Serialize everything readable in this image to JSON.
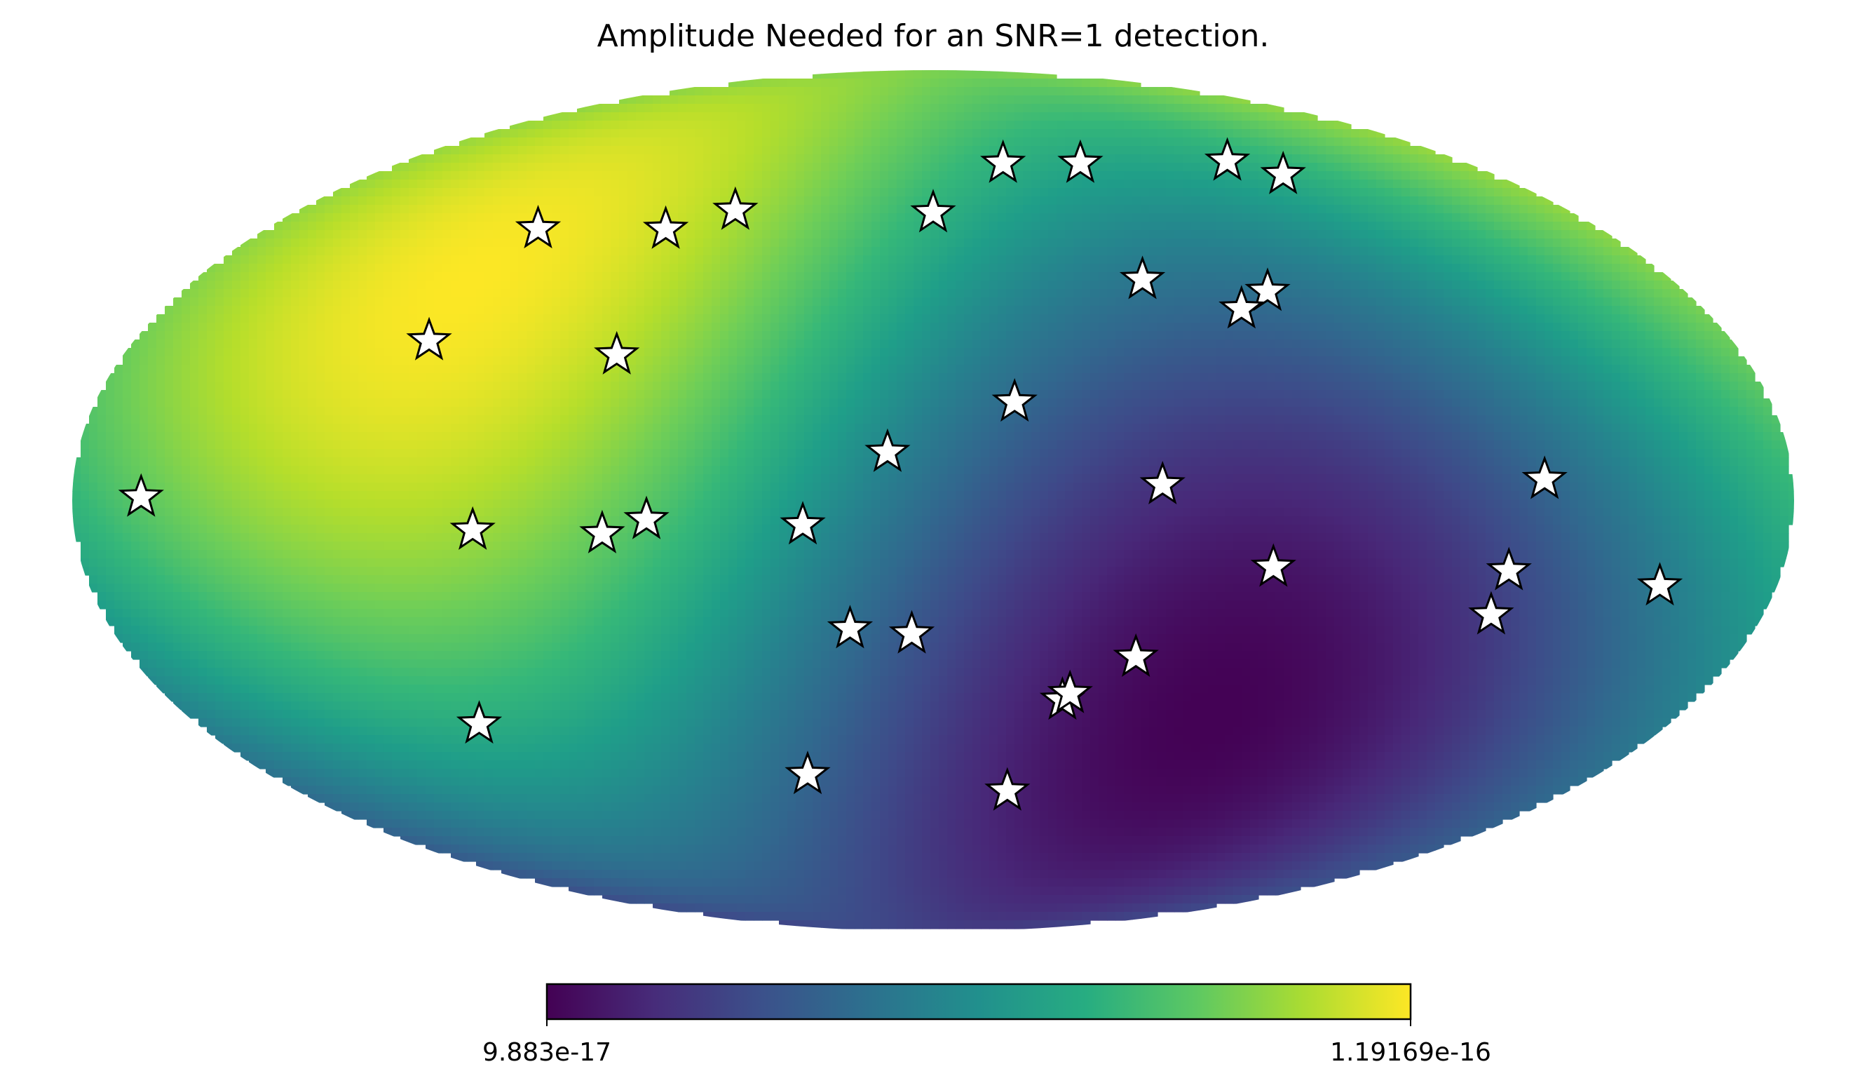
{
  "chart_data": {
    "type": "heatmap",
    "projection": "mollweide",
    "title": "Amplitude Needed for an SNR=1 detection.",
    "colormap": "viridis",
    "colorbar": {
      "min_label": "9.883e-17",
      "max_label": "1.19169e-16",
      "min": 9.883e-17,
      "max": 1.19169e-16,
      "orientation": "horizontal",
      "placement": "bottom"
    },
    "field": {
      "description_of_gradient": "yellow maximum toward upper-left, dark purple minimum toward lower-right",
      "max_lon_deg": 118,
      "max_lat_deg": 40,
      "min_lon_deg": -72,
      "min_lat_deg": -35
    },
    "marker": {
      "symbol": "star",
      "fill": "#ffffff",
      "stroke": "#000000"
    },
    "sources": [
      {
        "lon": 165.6,
        "lat": 0.6
      },
      {
        "lon": 113.5,
        "lat": 27.5
      },
      {
        "lon": 106.5,
        "lat": 48.3
      },
      {
        "lon": 72.0,
        "lat": 48.2
      },
      {
        "lon": 56.0,
        "lat": 52.0
      },
      {
        "lon": 70.3,
        "lat": 25.0
      },
      {
        "lon": 9.6,
        "lat": 8.2
      },
      {
        "lon": 60.0,
        "lat": -3.2
      },
      {
        "lon": 27.3,
        "lat": -4.1
      },
      {
        "lon": 69.4,
        "lat": -5.6
      },
      {
        "lon": 96.5,
        "lat": -5.0
      },
      {
        "lon": 0.0,
        "lat": 51.5
      },
      {
        "lon": -23.5,
        "lat": 62.0
      },
      {
        "lon": -49.5,
        "lat": 62.0
      },
      {
        "lon": -17.5,
        "lat": 16.8
      },
      {
        "lon": -51.0,
        "lat": 38.6
      },
      {
        "lon": -80.0,
        "lat": 36.4
      },
      {
        "lon": -72.0,
        "lat": 33.2
      },
      {
        "lon": -100.0,
        "lat": 62.5
      },
      {
        "lon": -112.0,
        "lat": 59.5
      },
      {
        "lon": -128.0,
        "lat": 3.6
      },
      {
        "lon": -48.0,
        "lat": 2.7
      },
      {
        "lon": -72.0,
        "lat": -11.3
      },
      {
        "lon": -122.0,
        "lat": -11.9
      },
      {
        "lon": -155.0,
        "lat": -14.5
      },
      {
        "lon": -121.0,
        "lat": -19.5
      },
      {
        "lon": 18.2,
        "lat": -21.9
      },
      {
        "lon": 4.7,
        "lat": -22.8
      },
      {
        "lon": -45.5,
        "lat": -26.9
      },
      {
        "lon": -30.5,
        "lat": -34.6
      },
      {
        "lon": -32.0,
        "lat": -33.4
      },
      {
        "lon": 111.0,
        "lat": -39.0
      },
      {
        "lon": 34.0,
        "lat": -48.7
      },
      {
        "lon": -21.0,
        "lat": -52.0
      }
    ]
  }
}
